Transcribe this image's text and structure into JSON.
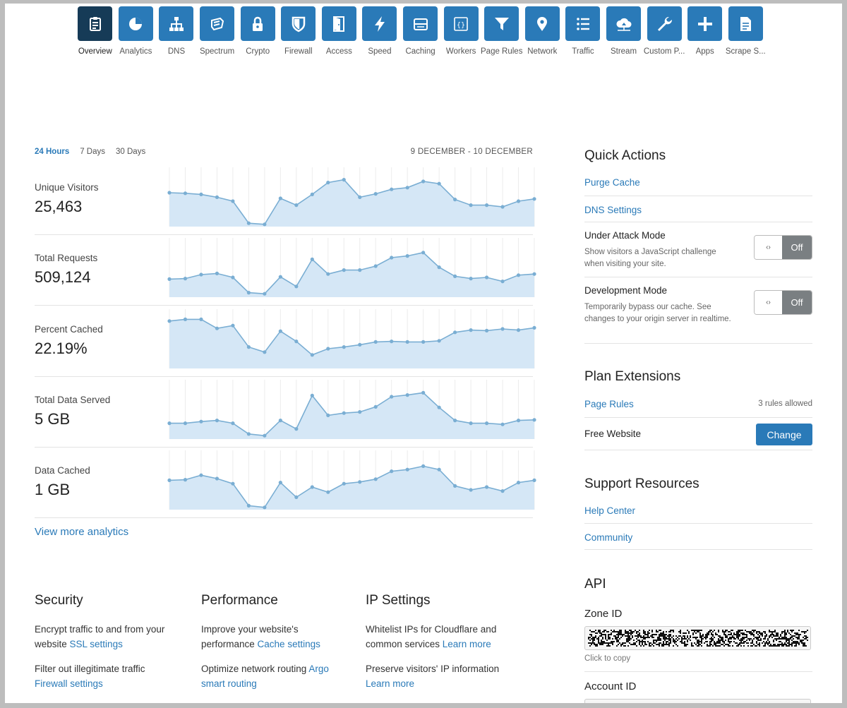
{
  "nav": {
    "items": [
      {
        "label": "Overview",
        "icon": "clipboard-icon",
        "active": true
      },
      {
        "label": "Analytics",
        "icon": "pie-chart-icon"
      },
      {
        "label": "DNS",
        "icon": "network-tree-icon"
      },
      {
        "label": "Spectrum",
        "icon": "spectrum-shield-icon"
      },
      {
        "label": "Crypto",
        "icon": "lock-icon"
      },
      {
        "label": "Firewall",
        "icon": "shield-icon"
      },
      {
        "label": "Access",
        "icon": "door-icon"
      },
      {
        "label": "Speed",
        "icon": "lightning-icon"
      },
      {
        "label": "Caching",
        "icon": "server-icon"
      },
      {
        "label": "Workers",
        "icon": "code-braces-icon"
      },
      {
        "label": "Page Rules",
        "icon": "filter-icon"
      },
      {
        "label": "Network",
        "icon": "location-pin-icon"
      },
      {
        "label": "Traffic",
        "icon": "list-icon"
      },
      {
        "label": "Stream",
        "icon": "cloud-upload-icon"
      },
      {
        "label": "Custom P...",
        "icon": "wrench-icon"
      },
      {
        "label": "Apps",
        "icon": "plus-icon"
      },
      {
        "label": "Scrape S...",
        "icon": "document-icon"
      }
    ]
  },
  "analytics": {
    "tabs": [
      {
        "label": "24 Hours",
        "active": true
      },
      {
        "label": "7 Days"
      },
      {
        "label": "30 Days"
      }
    ],
    "date_range": "9 DECEMBER - 10 DECEMBER",
    "metrics": [
      {
        "label": "Unique Visitors",
        "value": "25,463",
        "series": [
          60,
          59,
          57,
          52,
          45,
          6,
          4,
          50,
          38,
          57,
          78,
          83,
          52,
          58,
          66,
          69,
          80,
          76,
          48,
          38,
          38,
          35,
          45,
          49
        ]
      },
      {
        "label": "Total Requests",
        "value": "509,124",
        "series": [
          32,
          33,
          40,
          42,
          35,
          8,
          6,
          36,
          19,
          67,
          41,
          48,
          48,
          55,
          70,
          73,
          79,
          53,
          37,
          33,
          35,
          28,
          39,
          41
        ]
      },
      {
        "label": "Percent Cached",
        "value": "22.19%",
        "series": [
          84,
          87,
          87,
          71,
          76,
          38,
          29,
          66,
          48,
          24,
          35,
          38,
          42,
          47,
          48,
          47,
          47,
          49,
          64,
          68,
          67,
          70,
          68,
          72
        ]
      },
      {
        "label": "Total Data Served",
        "value": "5 GB",
        "series": [
          28,
          28,
          31,
          33,
          28,
          9,
          6,
          33,
          18,
          77,
          42,
          46,
          48,
          57,
          75,
          78,
          82,
          56,
          33,
          28,
          28,
          26,
          33,
          34
        ]
      },
      {
        "label": "Data Cached",
        "value": "1 GB",
        "series": [
          52,
          53,
          61,
          55,
          46,
          7,
          4,
          48,
          22,
          40,
          31,
          46,
          49,
          54,
          68,
          71,
          77,
          71,
          42,
          35,
          40,
          33,
          48,
          52
        ]
      }
    ],
    "view_more": "View more analytics"
  },
  "info": {
    "security": {
      "title": "Security",
      "p1_text": "Encrypt traffic to and from your website ",
      "p1_link": "SSL settings",
      "p2_text": "Filter out illegitimate traffic ",
      "p2_link": "Firewall settings"
    },
    "performance": {
      "title": "Performance",
      "p1_text": "Improve your website's performance ",
      "p1_link": "Cache settings",
      "p2_text": "Optimize network routing ",
      "p2_link": "Argo smart routing"
    },
    "ip": {
      "title": "IP Settings",
      "p1_text": "Whitelist IPs for Cloudflare and common services ",
      "p1_link": "Learn more",
      "p2_text": "Preserve visitors' IP information ",
      "p2_link": "Learn more"
    }
  },
  "quick_actions": {
    "title": "Quick Actions",
    "purge_cache": "Purge Cache",
    "dns_settings": "DNS Settings",
    "under_attack": {
      "title": "Under Attack Mode",
      "desc": "Show visitors a JavaScript challenge when visiting your site.",
      "state": "Off"
    },
    "dev_mode": {
      "title": "Development Mode",
      "desc": "Temporarily bypass our cache. See changes to your origin server in realtime.",
      "state": "Off"
    },
    "toggle_glyph": "‹›"
  },
  "plan": {
    "title": "Plan Extensions",
    "page_rules": "Page Rules",
    "rules_allowed": "3 rules allowed",
    "free_website": "Free Website",
    "change": "Change"
  },
  "support": {
    "title": "Support Resources",
    "help_center": "Help Center",
    "community": "Community"
  },
  "api": {
    "title": "API",
    "zone_id_label": "Zone ID",
    "click_to_copy": "Click to copy",
    "account_id_label": "Account ID"
  },
  "colors": {
    "accent": "#2a7ab8",
    "nav_active": "#163b57",
    "chart_fill": "#d5e7f6",
    "chart_line": "#7aaed3",
    "toggle_off": "#7a7f82"
  }
}
